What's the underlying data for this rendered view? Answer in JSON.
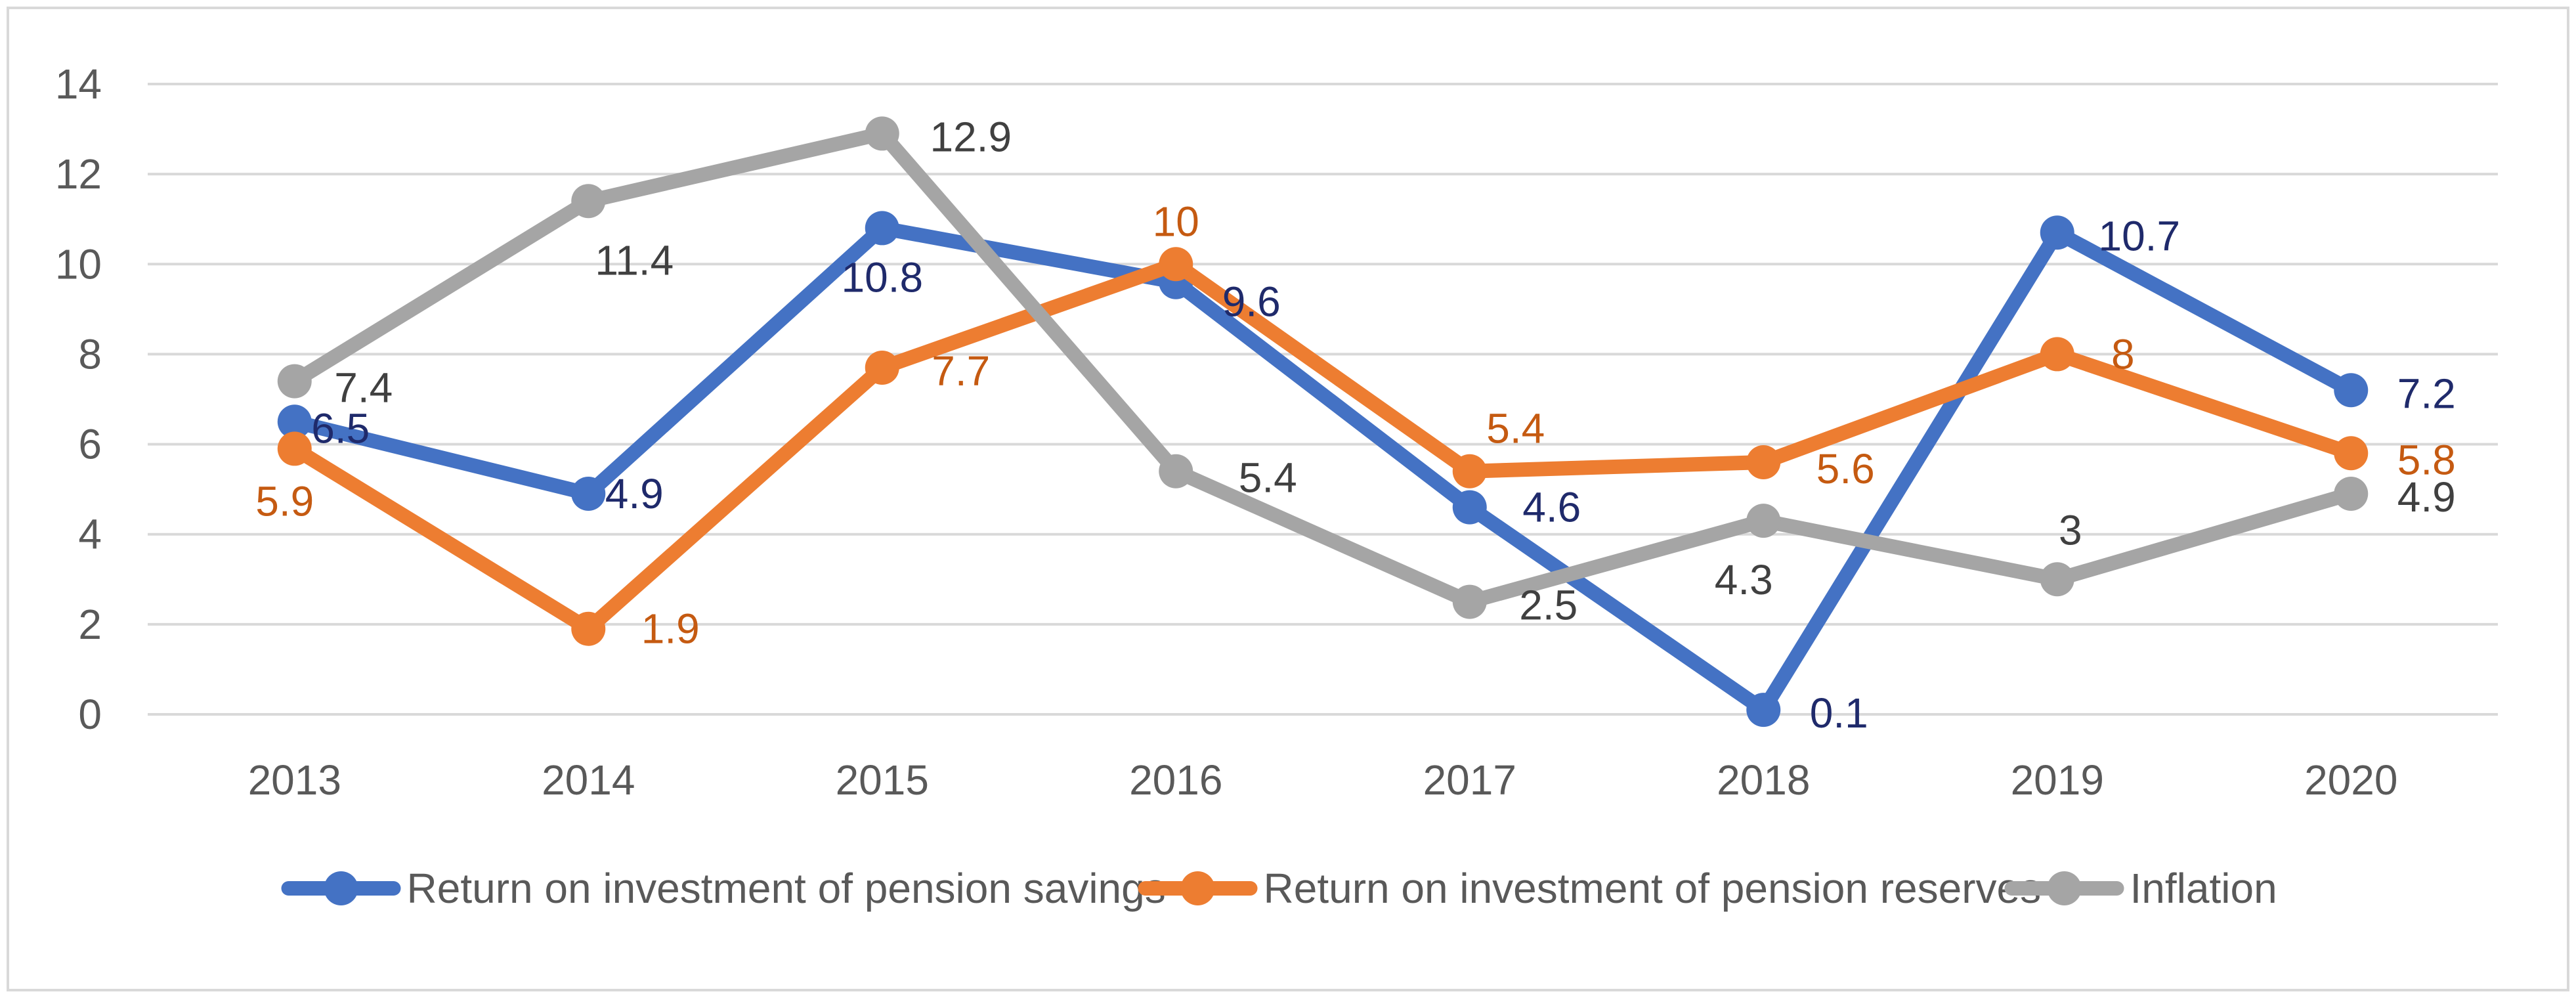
{
  "chart_data": {
    "type": "line",
    "title": "",
    "xlabel": "",
    "ylabel": "",
    "categories": [
      "2013",
      "2014",
      "2015",
      "2016",
      "2017",
      "2018",
      "2019",
      "2020"
    ],
    "ylim": [
      0,
      14
    ],
    "yticks": [
      0,
      2,
      4,
      6,
      8,
      10,
      12,
      14
    ],
    "ytick_labels": [
      "0",
      "2",
      "4",
      "6",
      "8",
      "10",
      "12",
      "14"
    ],
    "grid": true,
    "legend_position": "bottom",
    "series": [
      {
        "name": "Return on investment of pension savings",
        "color": "#4472C4",
        "label_color": "#1F2A6B",
        "values": [
          6.5,
          4.9,
          10.8,
          9.6,
          4.6,
          0.1,
          10.7,
          7.2
        ],
        "labels": [
          "6.5",
          "4.9",
          "10.8",
          "9.6",
          "4.6",
          "0.1",
          "10.7",
          "7.2"
        ]
      },
      {
        "name": "Return on investment of pension reserves",
        "color": "#ED7D31",
        "label_color": "#C55A11",
        "values": [
          5.9,
          1.9,
          7.7,
          10,
          5.4,
          5.6,
          8,
          5.8
        ],
        "labels": [
          "5.9",
          "1.9",
          "7.7",
          "10",
          "5.4",
          "5.6",
          "8",
          "5.8"
        ]
      },
      {
        "name": "Inflation",
        "color": "#A5A5A5",
        "label_color": "#404040",
        "values": [
          7.4,
          11.4,
          12.9,
          5.4,
          2.5,
          4.3,
          3,
          4.9
        ],
        "labels": [
          "7.4",
          "11.4",
          "12.9",
          "5.4",
          "2.5",
          "4.3",
          "3",
          "4.9"
        ]
      }
    ]
  }
}
